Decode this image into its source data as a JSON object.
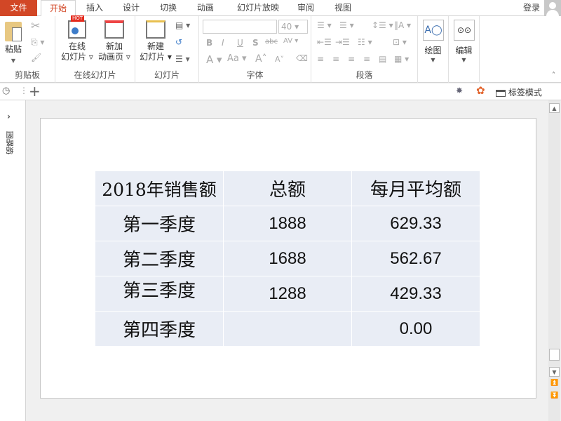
{
  "tabs": {
    "file": "文件",
    "items": [
      "开始",
      "插入",
      "设计",
      "切换",
      "动画",
      "幻灯片放映",
      "审阅",
      "视图"
    ],
    "login": "登录"
  },
  "ribbon": {
    "clipboard": {
      "paste": "粘贴",
      "label": "剪贴板"
    },
    "online": {
      "online_slides": [
        "在线",
        "幻灯片"
      ],
      "new_anim": [
        "新加",
        "动画页"
      ],
      "hot": "HOT",
      "label": "在线幻灯片"
    },
    "slides": {
      "new_slide": [
        "新建",
        "幻灯片"
      ],
      "label": "幻灯片"
    },
    "font": {
      "font_name": "",
      "font_size": "40",
      "label": "字体"
    },
    "paragraph": {
      "label": "段落"
    },
    "drawing": {
      "label": "绘图"
    },
    "editing": {
      "label": "编辑"
    }
  },
  "quickbar": {
    "tag_mode": "标签模式"
  },
  "leftpane": {
    "label": "缩略图"
  },
  "table": {
    "header": [
      "2018年销售额",
      "总额",
      "每月平均额"
    ],
    "rows": [
      [
        "第一季度",
        "1888",
        "629.33"
      ],
      [
        "第二季度",
        "1688",
        "562.67"
      ],
      [
        "第三季度",
        "1288",
        "429.33"
      ],
      [
        "第四季度",
        "",
        "0.00"
      ]
    ]
  },
  "colors": {
    "accent": "#d24726",
    "cell": "#e9edf5"
  }
}
